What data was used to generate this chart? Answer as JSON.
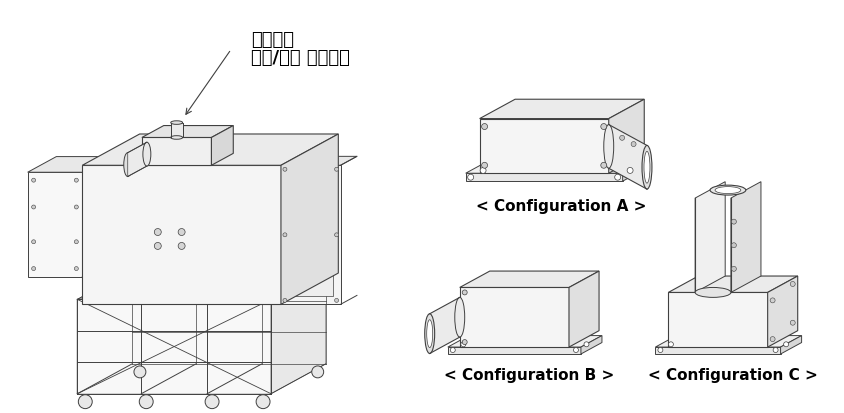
{
  "bg_color": "#ffffff",
  "line_color": "#404040",
  "label_annotation_line1": "과급공기",
  "label_annotation_line2": "공급/배출 매니폴드",
  "config_a_label": "< Configuration A >",
  "config_b_label": "< Configuration B >",
  "config_c_label": "< Configuration C >",
  "label_fontsize": 10,
  "korean_fontsize": 13,
  "fill_white": "#ffffff",
  "fill_light": "#f2f2f2",
  "fill_mid": "#e0e0e0",
  "fill_dark": "#c8c8c8",
  "fill_darker": "#b0b0b0"
}
